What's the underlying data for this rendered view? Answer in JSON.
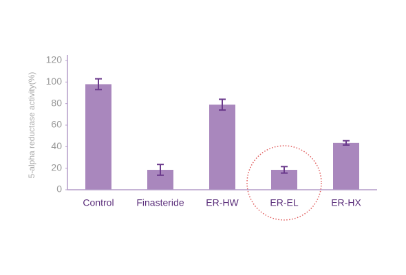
{
  "chart_data": {
    "type": "bar",
    "y_label": "5-alpha reductase activity(%)",
    "categories": [
      "Control",
      "Finasteride",
      "ER-HW",
      "ER-EL",
      "ER-HX"
    ],
    "values": [
      98,
      18.5,
      79,
      18.5,
      43.5
    ],
    "errors": [
      5,
      5,
      5,
      3,
      2
    ],
    "color": "#a987bd",
    "error_color": "#6b3a8c",
    "ylim": [
      0,
      120
    ],
    "yticks": [
      0,
      20,
      40,
      60,
      80,
      100,
      120
    ],
    "grid": false
  }
}
